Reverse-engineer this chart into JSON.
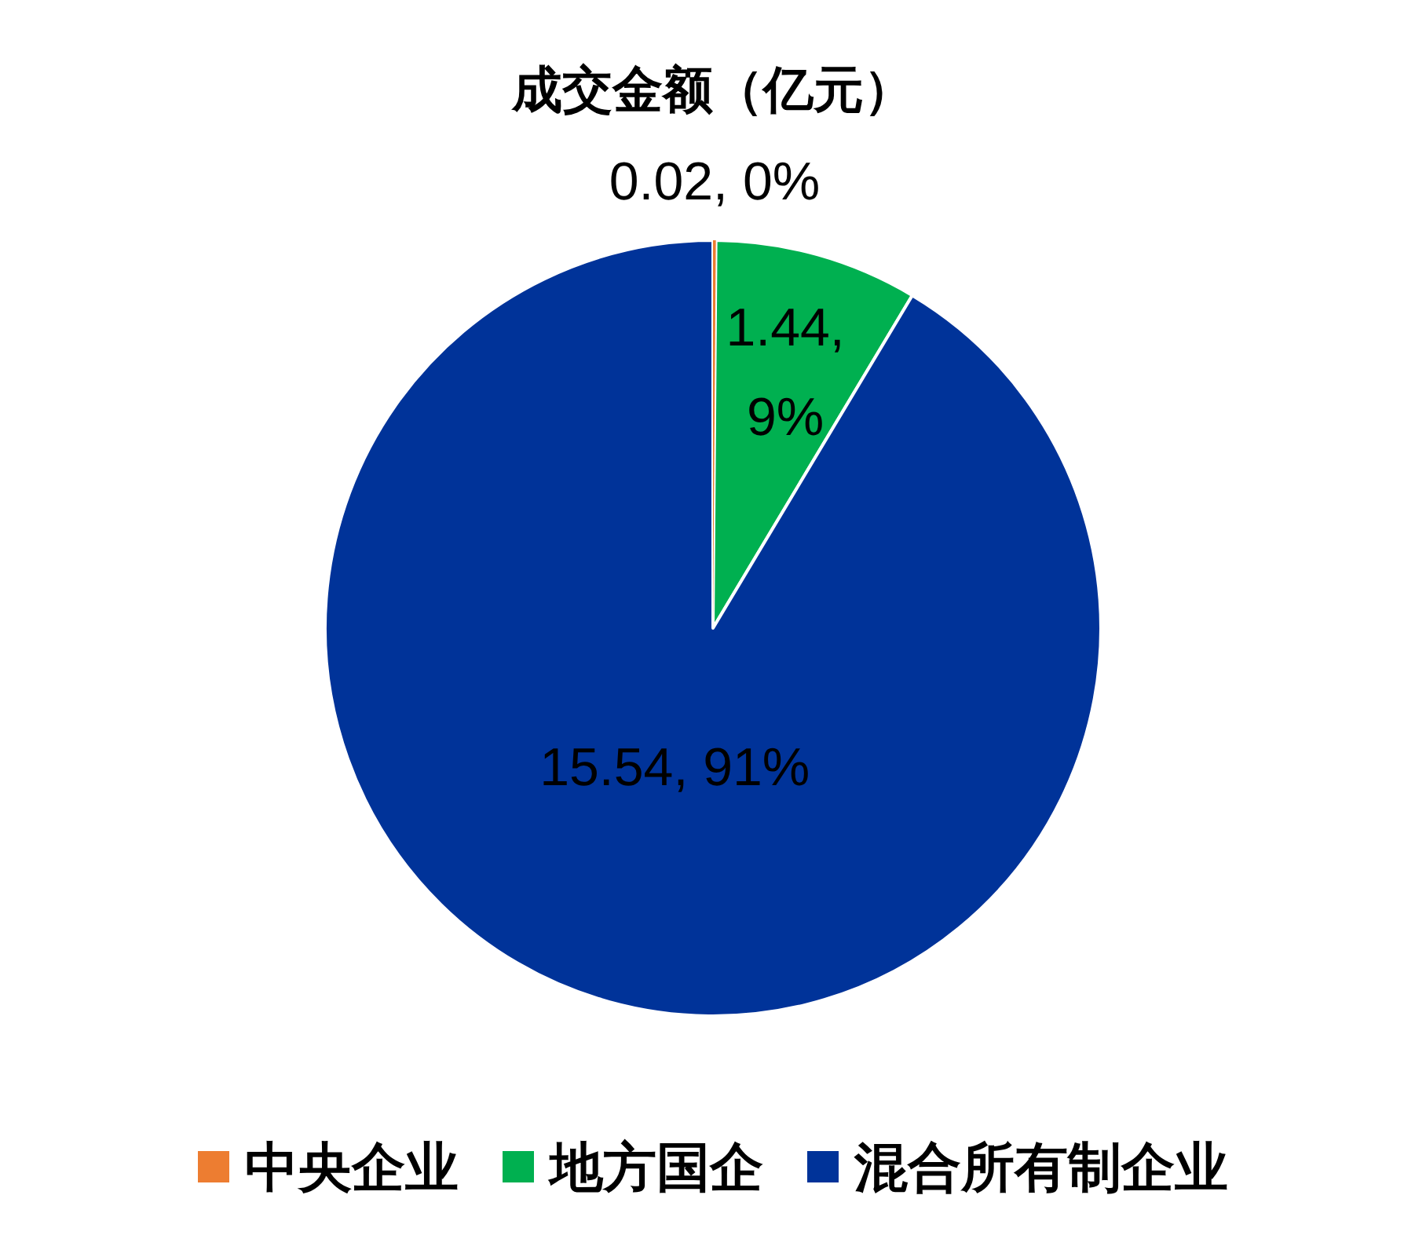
{
  "chart_data": {
    "type": "pie",
    "title": "成交金额（亿元）",
    "categories": [
      "中央企业",
      "地方国企",
      "混合所有制企业"
    ],
    "values": [
      0.02,
      1.44,
      15.54
    ],
    "value_labels": [
      "0.02, 0%",
      "1.44, 9%",
      "15.54, 91%"
    ],
    "colors": [
      "#ed7d31",
      "#00b050",
      "#003399"
    ],
    "legend": "bottom"
  }
}
